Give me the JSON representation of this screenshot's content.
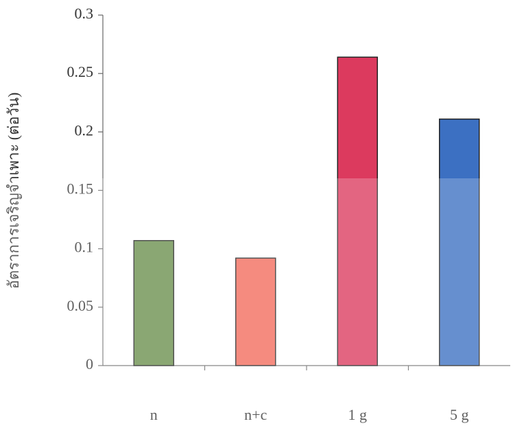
{
  "chart_data": {
    "type": "bar",
    "y_label": "อัตราการเจริญจำเพาะ (ต่อวัน)",
    "categories": [
      "n",
      "n+c",
      "1 g",
      "5 g"
    ],
    "values": [
      0.107,
      0.092,
      0.264,
      0.211
    ],
    "colors": [
      "#6a8f4c",
      "#f26b5b",
      "#dc3a5e",
      "#3c70c2"
    ],
    "ylim": [
      0,
      0.3
    ],
    "yticks": [
      0,
      0.05,
      0.1,
      0.15,
      0.2,
      0.25,
      0.3
    ],
    "grid": false
  }
}
